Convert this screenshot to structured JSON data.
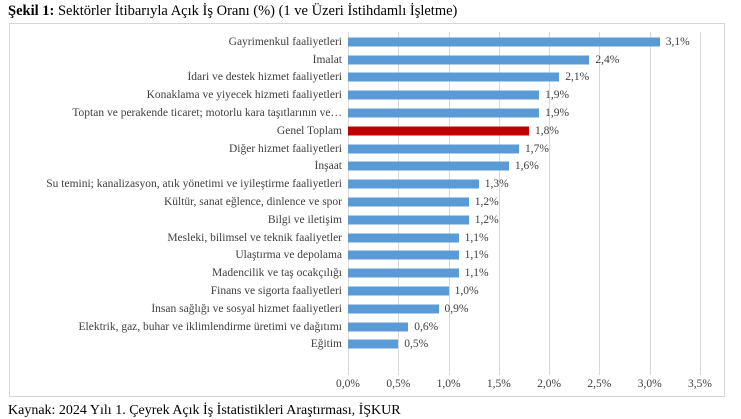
{
  "title": {
    "figure_label": "Şekil 1:",
    "text": " Sektörler İtibarıyla Açık İş Oranı (%) (1 ve Üzeri İstihdamlı İşletme)"
  },
  "source_note": "Kaynak: 2024 Yılı 1. Çeyrek Açık İş İstatistikleri Araştırması, İŞKUR",
  "chart_data": {
    "type": "bar",
    "orientation": "horizontal",
    "title": "Sektörler İtibarıyla Açık İş Oranı (%) (1 ve Üzeri İstihdamlı İşletme)",
    "categories": [
      "Gayrimenkul faaliyetleri",
      "İmalat",
      "İdari ve destek hizmet faaliyetleri",
      "Konaklama ve yiyecek hizmeti faaliyetleri",
      "Toptan ve perakende ticaret; motorlu kara taşıtlarının ve…",
      "Genel Toplam",
      "Diğer hizmet faaliyetleri",
      "İnşaat",
      "Su temini; kanalizasyon, atık yönetimi ve iyileştirme faaliyetleri",
      "Kültür, sanat eğlence, dinlence ve spor",
      "Bilgi ve iletişim",
      "Mesleki, bilimsel ve teknik faaliyetler",
      "Ulaştırma ve depolama",
      "Madencilik ve taş ocakçılığı",
      "Finans ve sigorta faaliyetleri",
      "İnsan sağlığı ve sosyal hizmet faaliyetleri",
      "Elektrik, gaz, buhar ve iklimlendirme üretimi ve dağıtımı",
      "Eğitim"
    ],
    "values": [
      3.1,
      2.4,
      2.1,
      1.9,
      1.9,
      1.8,
      1.7,
      1.6,
      1.3,
      1.2,
      1.2,
      1.1,
      1.1,
      1.1,
      1.0,
      0.9,
      0.6,
      0.5
    ],
    "value_labels": [
      "3,1%",
      "2,4%",
      "2,1%",
      "1,9%",
      "1,9%",
      "1,8%",
      "1,7%",
      "1,6%",
      "1,3%",
      "1,2%",
      "1,2%",
      "1,1%",
      "1,1%",
      "1,1%",
      "1,0%",
      "0,9%",
      "0,6%",
      "0,5%"
    ],
    "highlight_category": "Genel Toplam",
    "x_ticks": [
      "0,0%",
      "0,5%",
      "1,0%",
      "1,5%",
      "2,0%",
      "2,5%",
      "3,0%",
      "3,5%"
    ],
    "x_tick_values": [
      0.0,
      0.5,
      1.0,
      1.5,
      2.0,
      2.5,
      3.0,
      3.5
    ],
    "xlim": [
      0,
      3.5
    ],
    "grid": true,
    "legend": false,
    "colors": {
      "bar": "#5B9BD5",
      "highlight": "#C00000",
      "gridline": "#d9d9d9",
      "chart_border": "#d6d6d6",
      "label_text": "#404040"
    }
  }
}
